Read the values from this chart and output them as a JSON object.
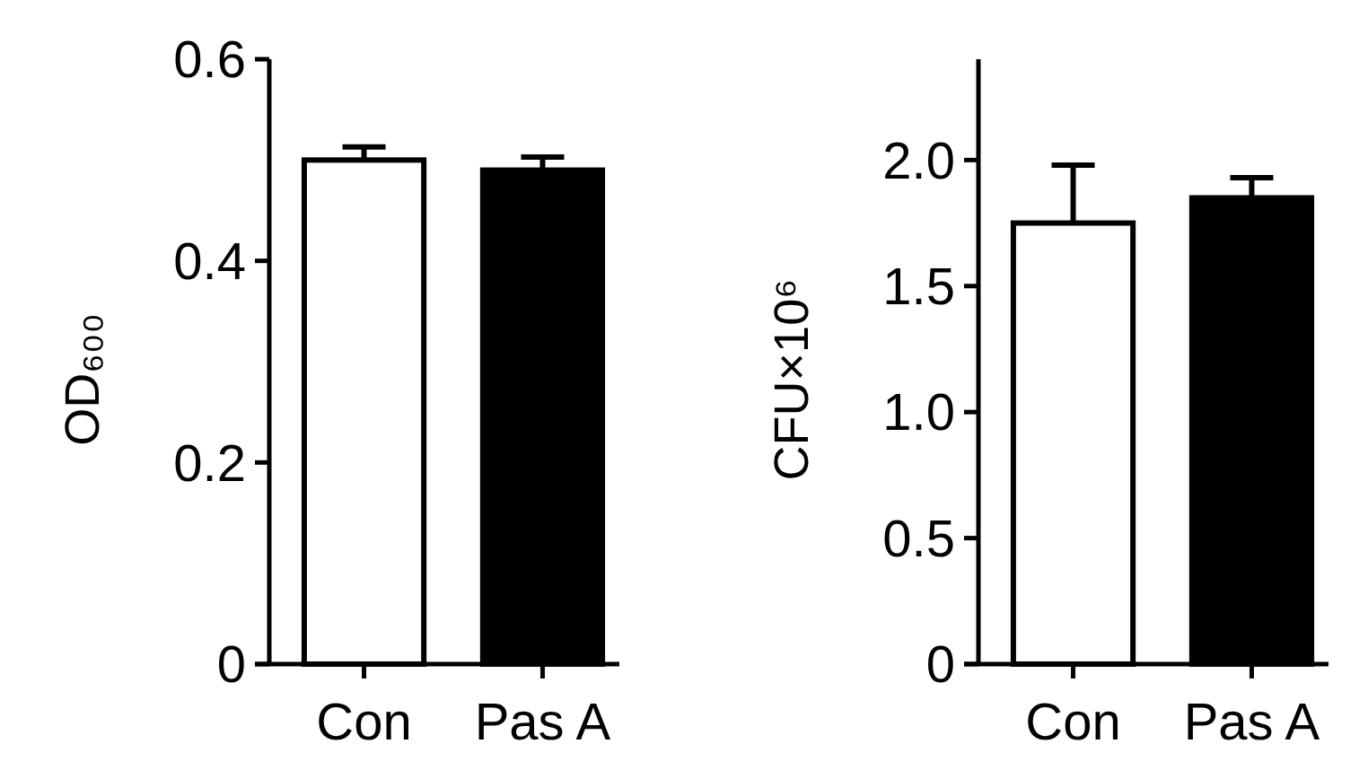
{
  "chart_data": [
    {
      "type": "bar",
      "ylabel": "OD₆₀₀",
      "categories": [
        "Con",
        "Pas A"
      ],
      "values": [
        0.5,
        0.49
      ],
      "colors": [
        "#ffffff",
        "#000000"
      ],
      "errors": [
        [
          0.5,
          0.513
        ],
        [
          0.49,
          0.503
        ]
      ],
      "ylim": [
        0,
        0.6
      ],
      "yticks": [
        0,
        {
          "value": 0.2,
          "label": "0.2"
        },
        {
          "value": 0.4,
          "label": "0.4"
        },
        {
          "value": 0.6,
          "label": "0.6"
        }
      ],
      "grid": false
    },
    {
      "type": "bar",
      "ylabel": "CFU×10⁶",
      "categories": [
        "Con",
        "Pas A"
      ],
      "values": [
        1.75,
        1.85
      ],
      "colors": [
        "#ffffff",
        "#000000"
      ],
      "errors": [
        [
          1.75,
          1.98
        ],
        [
          1.85,
          1.93
        ]
      ],
      "ylim": [
        0,
        2.4
      ],
      "yticks": [
        0,
        {
          "value": 0.5,
          "label": "0.5"
        },
        {
          "value": 1,
          "label": "1.0"
        },
        {
          "value": 1.5,
          "label": "1.5"
        },
        {
          "value": 2,
          "label": "2.0"
        }
      ],
      "grid": false
    }
  ]
}
